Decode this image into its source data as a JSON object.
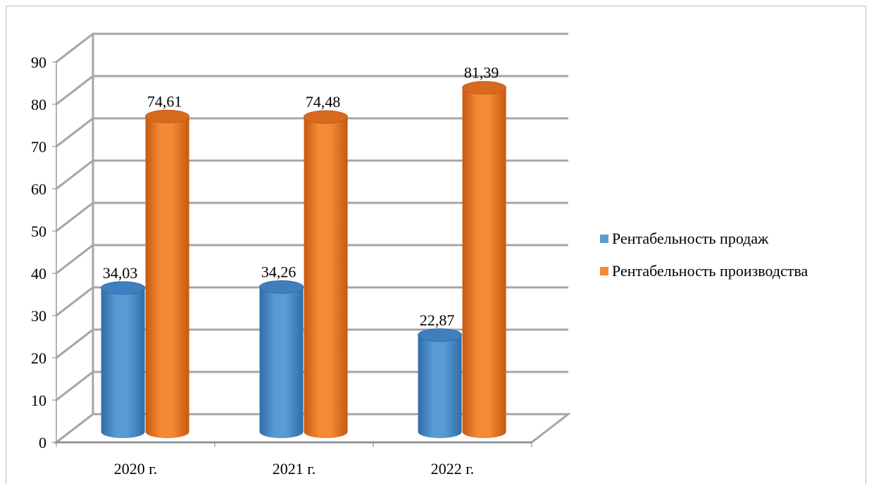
{
  "chart_data": {
    "type": "bar",
    "style": "3d-cylinder",
    "title": "",
    "xlabel": "",
    "ylabel": "",
    "categories": [
      "2020 г.",
      "2021 г.",
      "2022 г."
    ],
    "series": [
      {
        "name": "Рентабельность продаж",
        "values": [
          34.03,
          34.26,
          22.87
        ],
        "labels": [
          "34,03",
          "34,26",
          "22,87"
        ],
        "color": "#5B9BD5",
        "color_dark": "#2E6DA8",
        "color_top": "#3F7FC0"
      },
      {
        "name": "Рентабельность производства",
        "values": [
          74.61,
          74.48,
          81.39
        ],
        "labels": [
          "74,61",
          "74,48",
          "81,39"
        ],
        "color": "#F58A36",
        "color_dark": "#C55A11",
        "color_top": "#D86A1F"
      }
    ],
    "ylim": [
      0,
      90
    ],
    "yticks": [
      "0",
      "10",
      "20",
      "30",
      "40",
      "50",
      "60",
      "70",
      "80",
      "90"
    ],
    "grid": true,
    "legend_position": "right"
  }
}
